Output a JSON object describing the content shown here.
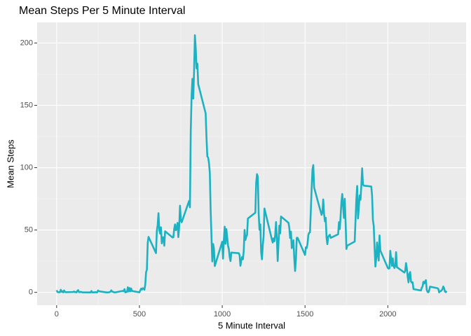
{
  "chart_data": {
    "type": "line",
    "title": "Mean Steps Per 5 Minute Interval",
    "xlabel": "5 Minute Interval",
    "ylabel": "Mean Steps",
    "x": [
      0,
      5,
      10,
      15,
      20,
      25,
      30,
      35,
      40,
      45,
      50,
      55,
      100,
      105,
      110,
      115,
      120,
      125,
      130,
      135,
      140,
      145,
      150,
      155,
      200,
      205,
      210,
      215,
      220,
      225,
      230,
      235,
      240,
      245,
      250,
      255,
      300,
      305,
      310,
      315,
      320,
      325,
      330,
      335,
      340,
      345,
      350,
      355,
      400,
      405,
      410,
      415,
      420,
      425,
      430,
      435,
      440,
      445,
      450,
      455,
      500,
      505,
      510,
      515,
      520,
      525,
      530,
      535,
      540,
      545,
      550,
      555,
      600,
      605,
      610,
      615,
      620,
      625,
      630,
      635,
      640,
      645,
      650,
      655,
      700,
      705,
      710,
      715,
      720,
      725,
      730,
      735,
      740,
      745,
      750,
      755,
      800,
      805,
      810,
      815,
      820,
      825,
      830,
      835,
      840,
      845,
      850,
      855,
      900,
      905,
      910,
      915,
      920,
      925,
      930,
      935,
      940,
      945,
      950,
      955,
      1000,
      1005,
      1010,
      1015,
      1020,
      1025,
      1030,
      1035,
      1040,
      1045,
      1050,
      1055,
      1100,
      1105,
      1110,
      1115,
      1120,
      1125,
      1130,
      1135,
      1140,
      1145,
      1150,
      1155,
      1200,
      1205,
      1210,
      1215,
      1220,
      1225,
      1230,
      1235,
      1240,
      1245,
      1250,
      1255,
      1300,
      1305,
      1310,
      1315,
      1320,
      1325,
      1330,
      1335,
      1340,
      1345,
      1350,
      1355,
      1400,
      1405,
      1410,
      1415,
      1420,
      1425,
      1430,
      1435,
      1440,
      1445,
      1450,
      1455,
      1500,
      1505,
      1510,
      1515,
      1520,
      1525,
      1530,
      1535,
      1540,
      1545,
      1550,
      1555,
      1600,
      1605,
      1610,
      1615,
      1620,
      1625,
      1630,
      1635,
      1640,
      1645,
      1650,
      1655,
      1700,
      1705,
      1710,
      1715,
      1720,
      1725,
      1730,
      1735,
      1740,
      1745,
      1750,
      1755,
      1800,
      1805,
      1810,
      1815,
      1820,
      1825,
      1830,
      1835,
      1840,
      1845,
      1850,
      1855,
      1900,
      1905,
      1910,
      1915,
      1920,
      1925,
      1930,
      1935,
      1940,
      1945,
      1950,
      1955,
      2000,
      2005,
      2010,
      2015,
      2020,
      2025,
      2030,
      2035,
      2040,
      2045,
      2050,
      2055,
      2100,
      2105,
      2110,
      2115,
      2120,
      2125,
      2130,
      2135,
      2140,
      2145,
      2150,
      2155,
      2200,
      2205,
      2210,
      2215,
      2220,
      2225,
      2230,
      2235,
      2240,
      2245,
      2250,
      2255,
      2300,
      2305,
      2310,
      2315,
      2320,
      2325,
      2330,
      2335,
      2340,
      2345,
      2350,
      2355
    ],
    "series": [
      {
        "name": "Mean Steps",
        "color": "#1cb2c2",
        "values": [
          1.7,
          0.3,
          0.1,
          0.2,
          0.1,
          2.1,
          0.5,
          0.9,
          0,
          1.5,
          0.4,
          0.1,
          0.3,
          0.7,
          0.2,
          0.3,
          0,
          1.1,
          1.8,
          0.2,
          0.2,
          0.4,
          0.3,
          0,
          0,
          0,
          1.1,
          0,
          0,
          0.1,
          0,
          0.2,
          0,
          0,
          1.5,
          0.9,
          0,
          0,
          0,
          0,
          0.2,
          0.6,
          1.6,
          0.6,
          0.5,
          0.1,
          0,
          0,
          1.2,
          0.9,
          2.6,
          0,
          0.3,
          0.4,
          4.1,
          0.7,
          3.5,
          0.8,
          3.1,
          1.1,
          0,
          1.6,
          3,
          2.2,
          3.3,
          3,
          2.1,
          6,
          16,
          18.3,
          39.5,
          44.5,
          31.5,
          49.3,
          53.8,
          63.5,
          50,
          47.1,
          52.2,
          39.3,
          44,
          44.2,
          37.4,
          49,
          44,
          44.2,
          50.8,
          54.5,
          49.9,
          51,
          55.7,
          44.3,
          52.3,
          69.5,
          57.8,
          56.2,
          73.4,
          68.2,
          129.4,
          157.5,
          171.2,
          155.4,
          177.3,
          206.2,
          195.9,
          179.6,
          183.4,
          167,
          143.5,
          124,
          109.1,
          108.1,
          103.7,
          96,
          66.2,
          45.2,
          24.8,
          38.8,
          35,
          21.1,
          40.6,
          27,
          42.4,
          52.7,
          38.9,
          50.8,
          44.3,
          37.4,
          34.7,
          28.3,
          25.1,
          31.9,
          31.4,
          29.7,
          21.3,
          25.5,
          28.4,
          26.5,
          33.4,
          50,
          42,
          44.6,
          46,
          59.2,
          63.9,
          87.7,
          94.8,
          92.8,
          63.4,
          50.2,
          54.5,
          32.4,
          26.5,
          37.7,
          45.1,
          67.3,
          42.3,
          39.9,
          43.3,
          41,
          46.2,
          56.4,
          42.8,
          25.1,
          40,
          53.5,
          47.3,
          60.8,
          55.8,
          52,
          43.6,
          48.7,
          35.5,
          37.5,
          41.8,
          27.5,
          17.1,
          26.1,
          43.7,
          43.8,
          30,
          36.1,
          35.5,
          38.8,
          46,
          47.8,
          48.1,
          65.3,
          82.9,
          98.7,
          102.1,
          84,
          62.1,
          64.1,
          74.5,
          63.2,
          56.9,
          59.8,
          43.9,
          38.6,
          44.7,
          45.5,
          46.2,
          43.7,
          46.6,
          56.3,
          50.7,
          61.2,
          72.7,
          78.9,
          68.9,
          59.7,
          75.1,
          56.5,
          34.8,
          37.5,
          40.7,
          58,
          74.7,
          85.3,
          59.3,
          67.8,
          77.7,
          74.2,
          85.3,
          99.5,
          86.6,
          85.6,
          84.9,
          77.8,
          58,
          53.4,
          36.3,
          20.7,
          27.4,
          40,
          30.2,
          25.5,
          45.7,
          33.5,
          19.6,
          19,
          19.3,
          33.3,
          26.8,
          21.2,
          27.3,
          21.3,
          19.5,
          21.3,
          32.3,
          20.2,
          15.9,
          17.2,
          23.5,
          19.2,
          12.5,
          8,
          14.7,
          16.3,
          8.7,
          7.8,
          8.1,
          2.6,
          1.5,
          3.7,
          4.8,
          8.5,
          7.1,
          8.7,
          9.8,
          2.2,
          0.3,
          0.1,
          1.6,
          4.6,
          3.3,
          2.8,
          0,
          0.8,
          1,
          1.6,
          2.6,
          4.7,
          3.3,
          0.6,
          0.2,
          1.1
        ]
      }
    ],
    "xlim": [
      -117.75,
      2472.75
    ],
    "ylim": [
      -10.3,
      216.5
    ],
    "xticks": [
      0,
      500,
      1000,
      1500,
      2000
    ],
    "yticks": [
      0,
      50,
      100,
      150,
      200
    ],
    "xminor": [
      250,
      750,
      1250,
      1750,
      2250
    ],
    "yminor": [
      25,
      75,
      125,
      175
    ],
    "grid": true
  }
}
